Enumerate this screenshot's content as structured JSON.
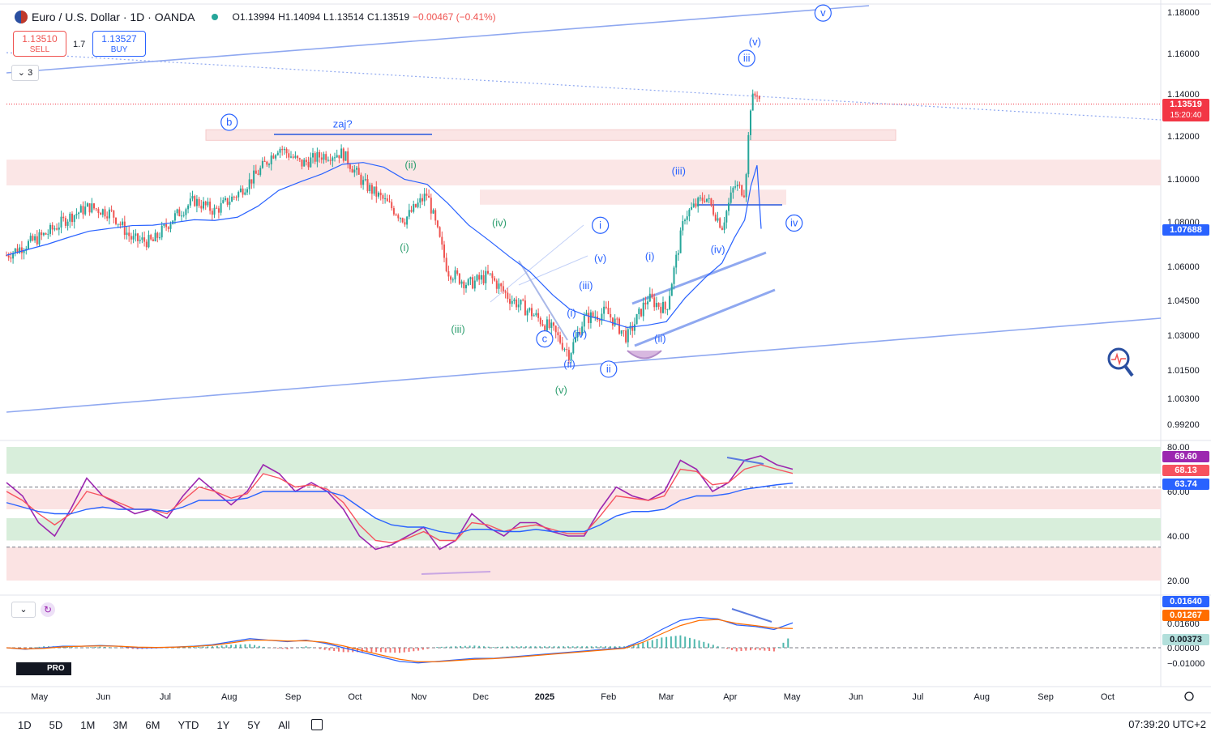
{
  "header": {
    "symbol": "Euro / U.S. Dollar · 1D · OANDA",
    "open": "O1.13994",
    "high": "H1.14094",
    "low": "L1.13514",
    "close": "C1.13519",
    "change": "−0.00467 (−0.41%)"
  },
  "trade": {
    "sell_price": "1.13510",
    "sell_label": "SELL",
    "spread": "1.7",
    "buy_price": "1.13527",
    "buy_label": "BUY",
    "collapse_count": "3"
  },
  "price_tags": {
    "last": "1.13519",
    "countdown": "15:20:40",
    "ma": "1.07688"
  },
  "rsi_tags": {
    "rsi": "69.60",
    "rsi_ma": "68.13",
    "rsi_ma2": "63.74"
  },
  "macd_tags": {
    "macd": "0.01640",
    "signal": "0.01267",
    "hist": "0.00373"
  },
  "timeframes": [
    "1D",
    "5D",
    "1M",
    "3M",
    "6M",
    "YTD",
    "1Y",
    "5Y",
    "All"
  ],
  "clock": "07:39:20 UTC+2",
  "logo_text": "PRO",
  "colors": {
    "up": "#26a69a",
    "down": "#ef5350",
    "ma": "#2962ff",
    "wave": "#2962ff",
    "wave_green": "#2e9e6f",
    "rsi": "#9c27b0",
    "signal": "#f7525f",
    "zone_red": "#fbe3e3",
    "zone_green": "#d8eedb"
  },
  "chart_data": [
    {
      "type": "candlestick",
      "title": "",
      "y_ticks": [
        "1.18000",
        "1.16000",
        "1.14000",
        "1.12000",
        "1.10000",
        "1.08000",
        "1.06000",
        "1.04500",
        "1.03000",
        "1.01500",
        "1.00300",
        "0.99200"
      ],
      "x_ticks": [
        "May",
        "Jun",
        "Jul",
        "Aug",
        "Sep",
        "Oct",
        "Nov",
        "Dec",
        "2025",
        "Feb",
        "Mar",
        "Apr",
        "May",
        "Jun",
        "Jul",
        "Aug",
        "Sep",
        "Oct"
      ],
      "ylim": [
        0.985,
        1.185
      ],
      "close_path": {
        "dates": [
          "2024-04-15",
          "2024-04-25",
          "2024-05-05",
          "2024-05-15",
          "2024-05-25",
          "2024-06-05",
          "2024-06-15",
          "2024-06-25",
          "2024-07-05",
          "2024-07-15",
          "2024-07-25",
          "2024-08-05",
          "2024-08-15",
          "2024-08-25",
          "2024-09-05",
          "2024-09-15",
          "2024-09-25",
          "2024-10-05",
          "2024-10-15",
          "2024-10-25",
          "2024-11-05",
          "2024-11-15",
          "2024-11-25",
          "2024-12-05",
          "2024-12-15",
          "2024-12-25",
          "2025-01-05",
          "2025-01-13",
          "2025-01-20",
          "2025-01-31",
          "2025-02-10",
          "2025-02-20",
          "2025-03-01",
          "2025-03-10",
          "2025-03-20",
          "2025-03-28",
          "2025-04-03",
          "2025-04-08",
          "2025-04-11",
          "2025-04-14",
          "2025-04-16"
        ],
        "close": [
          1.065,
          1.07,
          1.075,
          1.082,
          1.087,
          1.084,
          1.072,
          1.071,
          1.082,
          1.09,
          1.085,
          1.093,
          1.103,
          1.115,
          1.107,
          1.111,
          1.112,
          1.098,
          1.09,
          1.081,
          1.093,
          1.058,
          1.052,
          1.056,
          1.046,
          1.04,
          1.032,
          1.022,
          1.037,
          1.04,
          1.029,
          1.046,
          1.041,
          1.083,
          1.092,
          1.078,
          1.097,
          1.094,
          1.136,
          1.141,
          1.13519
        ]
      },
      "moving_average": {
        "last": 1.07688
      },
      "zones": [
        {
          "from": 1.118,
          "to": 1.123
        },
        {
          "from": 1.097,
          "to": 1.109
        },
        {
          "from": 1.088,
          "to": 1.095
        }
      ],
      "wave_labels": [
        {
          "text": "b",
          "date": "2024-08-01",
          "price": 1.125,
          "circle": true
        },
        {
          "text": "zaj?",
          "date": "2024-09-25",
          "price": 1.124,
          "circle": false
        },
        {
          "text": "(ii)",
          "date": "2024-10-28",
          "price": 1.105,
          "circle": false
        },
        {
          "text": "(i)",
          "date": "2024-10-25",
          "price": 1.067,
          "circle": false
        },
        {
          "text": "(iv)",
          "date": "2024-12-10",
          "price": 1.078,
          "circle": false
        },
        {
          "text": "(iii)",
          "date": "2024-11-20",
          "price": 1.031,
          "circle": false
        },
        {
          "text": "c",
          "date": "2025-01-01",
          "price": 1.027,
          "circle": true
        },
        {
          "text": "(v)",
          "date": "2025-01-09",
          "price": 1.005,
          "circle": false
        },
        {
          "text": "i",
          "date": "2025-01-28",
          "price": 1.077,
          "circle": true
        },
        {
          "text": "(v)",
          "date": "2025-01-28",
          "price": 1.062,
          "circle": false
        },
        {
          "text": "(iii)",
          "date": "2025-01-21",
          "price": 1.05,
          "circle": false
        },
        {
          "text": "(i)",
          "date": "2025-01-14",
          "price": 1.038,
          "circle": false
        },
        {
          "text": "(iv)",
          "date": "2025-01-18",
          "price": 1.029,
          "circle": false
        },
        {
          "text": "(ii)",
          "date": "2025-01-13",
          "price": 1.016,
          "circle": false
        },
        {
          "text": "ii",
          "date": "2025-02-01",
          "price": 1.014,
          "circle": true
        },
        {
          "text": "(i)",
          "date": "2025-02-21",
          "price": 1.063,
          "circle": false
        },
        {
          "text": "(ii)",
          "date": "2025-02-26",
          "price": 1.027,
          "circle": false
        },
        {
          "text": "(iii)",
          "date": "2025-03-07",
          "price": 1.102,
          "circle": false
        },
        {
          "text": "(iv)",
          "date": "2025-03-26",
          "price": 1.066,
          "circle": false
        },
        {
          "text": "iii",
          "date": "2025-04-09",
          "price": 1.156,
          "circle": true
        },
        {
          "text": "(v)",
          "date": "2025-04-13",
          "price": 1.164,
          "circle": false
        },
        {
          "text": "iv",
          "date": "2025-05-02",
          "price": 1.078,
          "circle": true
        },
        {
          "text": "v",
          "date": "2025-05-16",
          "price": 1.178,
          "circle": true
        }
      ]
    },
    {
      "type": "line",
      "title": "",
      "y_ticks": [
        "80.00",
        "60.00",
        "40.00",
        "20.00"
      ],
      "ylim": [
        15,
        85
      ],
      "series": [
        {
          "values": [
            64,
            58,
            46,
            40,
            52,
            66,
            58,
            54,
            50,
            52,
            48,
            58,
            66,
            60,
            54,
            60,
            72,
            68,
            60,
            64,
            60,
            52,
            40,
            34,
            36,
            40,
            44,
            34,
            38,
            50,
            44,
            40,
            46,
            46,
            42,
            40,
            40,
            52,
            62,
            58,
            56,
            60,
            74,
            70,
            60,
            64,
            74,
            76,
            72,
            70
          ]
        },
        {
          "values": [
            60,
            56,
            50,
            45,
            50,
            60,
            58,
            55,
            52,
            52,
            50,
            56,
            62,
            60,
            57,
            59,
            68,
            66,
            62,
            63,
            61,
            55,
            45,
            38,
            37,
            39,
            42,
            38,
            38,
            46,
            45,
            42,
            44,
            45,
            43,
            41,
            41,
            49,
            58,
            57,
            56,
            58,
            70,
            69,
            63,
            64,
            70,
            72,
            70,
            68.13
          ]
        },
        {
          "values": [
            55,
            53,
            51,
            50,
            50,
            52,
            53,
            52,
            52,
            52,
            51,
            53,
            56,
            56,
            56,
            57,
            60,
            60,
            60,
            60,
            60,
            58,
            53,
            48,
            45,
            44,
            44,
            42,
            41,
            43,
            43,
            42,
            42,
            43,
            42,
            42,
            42,
            45,
            49,
            51,
            51,
            52,
            56,
            58,
            58,
            59,
            61,
            62,
            63,
            63.74
          ]
        }
      ]
    },
    {
      "type": "bar",
      "title": "",
      "y_ticks": [
        "0.01600",
        "0.00000",
        "-0.01000"
      ],
      "ylim": [
        -0.012,
        0.022
      ],
      "series": [
        {
          "values": [
            0.0,
            -0.001,
            0.0,
            0.001,
            0.001,
            0.0015,
            0.001,
            0.0,
            0.0,
            0.0005,
            0.001,
            0.002,
            0.004,
            0.006,
            0.005,
            0.004,
            0.005,
            0.003,
            0.0,
            -0.003,
            -0.006,
            -0.009,
            -0.01,
            -0.009,
            -0.008,
            -0.007,
            -0.007,
            -0.006,
            -0.005,
            -0.004,
            -0.003,
            -0.002,
            -0.001,
            0.0,
            0.005,
            0.012,
            0.018,
            0.02,
            0.019,
            0.015,
            0.014,
            0.012,
            0.0164
          ]
        },
        {
          "values": [
            0.0,
            -0.0008,
            -0.0004,
            0.0006,
            0.001,
            0.0012,
            0.001,
            0.0004,
            0.0002,
            0.0004,
            0.0008,
            0.0016,
            0.0032,
            0.005,
            0.005,
            0.0044,
            0.0046,
            0.0036,
            0.0012,
            -0.0018,
            -0.0048,
            -0.0076,
            -0.0092,
            -0.0092,
            -0.0084,
            -0.0076,
            -0.0072,
            -0.0064,
            -0.0054,
            -0.0044,
            -0.0034,
            -0.0024,
            -0.0014,
            -0.0004,
            0.0036,
            0.0092,
            0.0146,
            0.018,
            0.0186,
            0.016,
            0.0146,
            0.013,
            0.01267
          ]
        }
      ]
    }
  ]
}
